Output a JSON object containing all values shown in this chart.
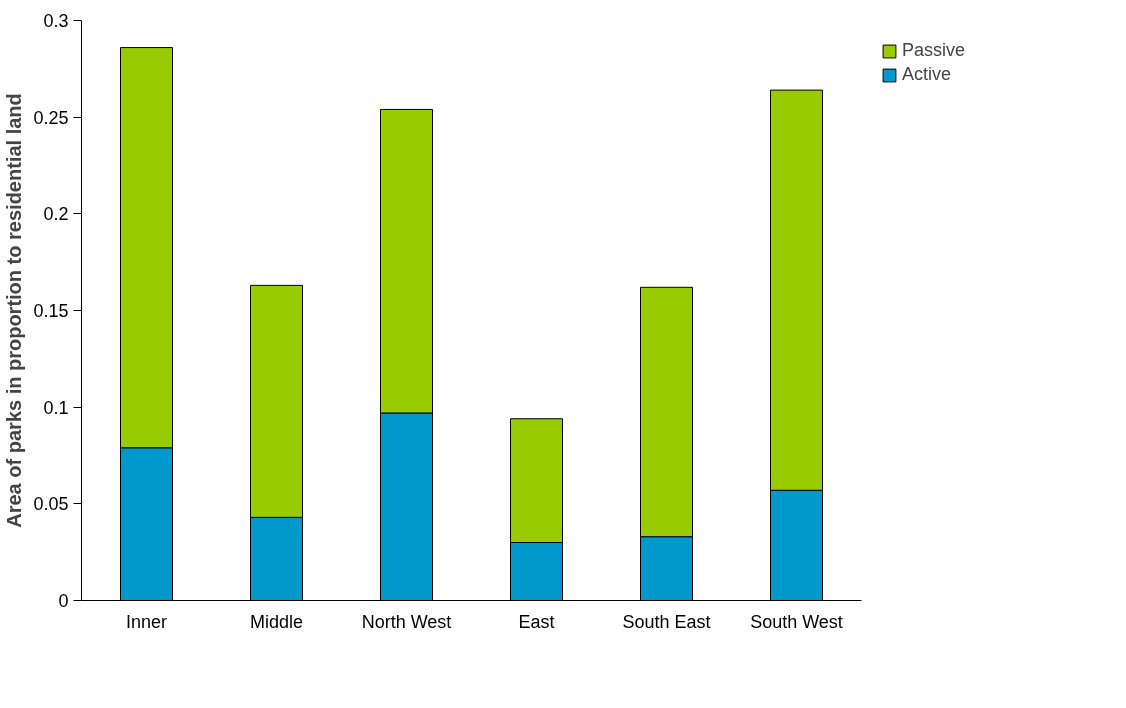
{
  "chart_data": {
    "type": "bar",
    "stacked": true,
    "ylabel": "Area of parks in proportion to residential land",
    "categories": [
      "Inner",
      "Middle",
      "North West",
      "East",
      "South East",
      "South West"
    ],
    "series": [
      {
        "name": "Active",
        "color": "#0099cc",
        "values": [
          0.079,
          0.043,
          0.097,
          0.03,
          0.033,
          0.057
        ]
      },
      {
        "name": "Passive",
        "color": "#99cc00",
        "values": [
          0.207,
          0.12,
          0.157,
          0.064,
          0.129,
          0.207
        ]
      }
    ],
    "ylim": [
      0,
      0.3
    ],
    "yticks": [
      0,
      0.05,
      0.1,
      0.15,
      0.2,
      0.25,
      0.3
    ],
    "grid": false,
    "legend": "right"
  }
}
